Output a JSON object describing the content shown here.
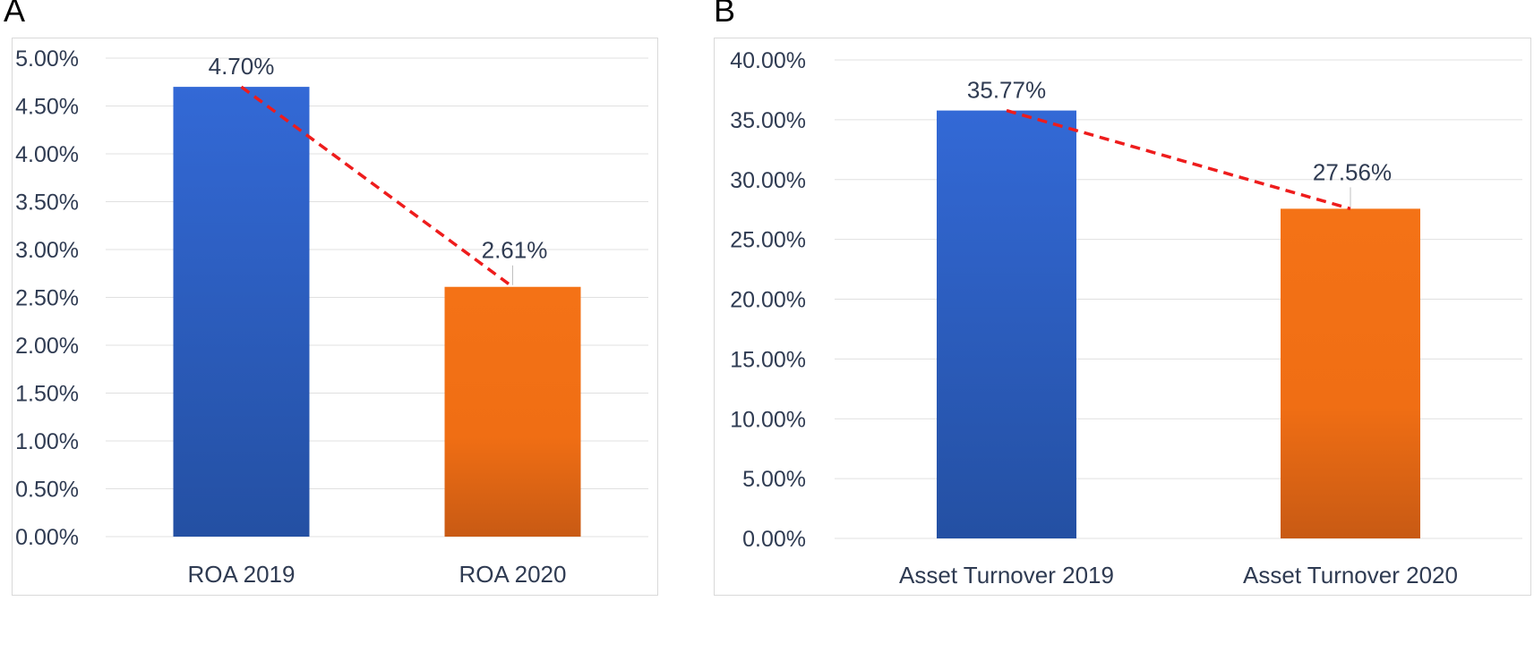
{
  "panels": [
    {
      "letter": "A"
    },
    {
      "letter": "B"
    }
  ],
  "chart_data": [
    {
      "type": "bar",
      "categories": [
        "ROA 2019",
        "ROA 2020"
      ],
      "values": [
        4.7,
        2.61
      ],
      "data_labels": [
        "4.70%",
        "2.61%"
      ],
      "ylim": [
        0,
        5
      ],
      "yticks": [
        0,
        0.5,
        1,
        1.5,
        2,
        2.5,
        3,
        3.5,
        4,
        4.5,
        5
      ],
      "ytick_labels": [
        "0.00%",
        "0.50%",
        "1.00%",
        "1.50%",
        "2.00%",
        "2.50%",
        "3.00%",
        "3.50%",
        "4.00%",
        "4.50%",
        "5.00%"
      ],
      "grid": true,
      "trend_line": "dashed",
      "colors": {
        "bar1": "#3366cc",
        "bar2": "#f47216",
        "trend": "#ee1c1c",
        "grid": "#e0e0e0",
        "text": "#2f3b52"
      }
    },
    {
      "type": "bar",
      "categories": [
        "Asset Turnover 2019",
        "Asset Turnover 2020"
      ],
      "values": [
        35.77,
        27.56
      ],
      "data_labels": [
        "35.77%",
        "27.56%"
      ],
      "ylim": [
        0,
        40
      ],
      "yticks": [
        0,
        5,
        10,
        15,
        20,
        25,
        30,
        35,
        40
      ],
      "ytick_labels": [
        "0.00%",
        "5.00%",
        "10.00%",
        "15.00%",
        "20.00%",
        "25.00%",
        "30.00%",
        "35.00%",
        "40.00%"
      ],
      "grid": true,
      "trend_line": "dashed",
      "colors": {
        "bar1": "#3366cc",
        "bar2": "#f47216",
        "trend": "#ee1c1c",
        "grid": "#e0e0e0",
        "text": "#2f3b52"
      }
    }
  ]
}
